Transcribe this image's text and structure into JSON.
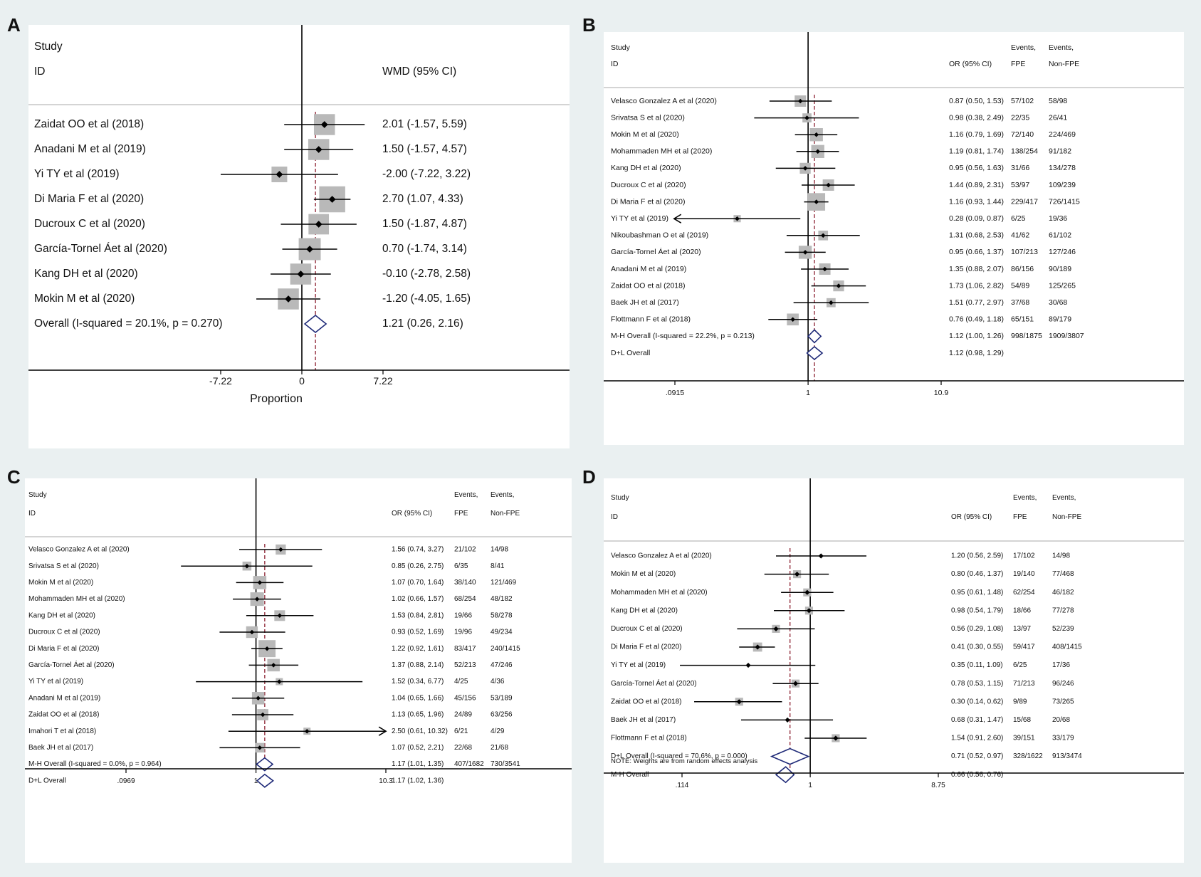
{
  "chart_data": [
    {
      "panel": "A",
      "type": "forest",
      "header": {
        "col1_line1": "Study",
        "col1_line2": "ID",
        "est_label": "WMD (95% CI)"
      },
      "studies": [
        {
          "id": "Zaidat OO et al (2018)",
          "est": 2.01,
          "lo": -1.57,
          "hi": 5.59,
          "label": "2.01 (-1.57, 5.59)",
          "w": 13
        },
        {
          "id": "Anadani M et al (2019)",
          "est": 1.5,
          "lo": -1.57,
          "hi": 4.57,
          "label": "1.50 (-1.57, 4.57)",
          "w": 13
        },
        {
          "id": "Yi TY et al (2019)",
          "est": -2.0,
          "lo": -7.22,
          "hi": 3.22,
          "label": "-2.00 (-7.22, 3.22)",
          "w": 5
        },
        {
          "id": "Di Maria F et al (2020)",
          "est": 2.7,
          "lo": 1.07,
          "hi": 4.33,
          "label": "2.70 (1.07, 4.33)",
          "w": 24
        },
        {
          "id": "Ducroux C et al (2020)",
          "est": 1.5,
          "lo": -1.87,
          "hi": 4.87,
          "label": "1.50 (-1.87, 4.87)",
          "w": 12
        },
        {
          "id": "García-Tornel Áet al  (2020)",
          "est": 0.7,
          "lo": -1.74,
          "hi": 3.14,
          "label": "0.70 (-1.74, 3.14)",
          "w": 15
        },
        {
          "id": "Kang DH et al (2020)",
          "est": -0.1,
          "lo": -2.78,
          "hi": 2.58,
          "label": "-0.10 (-2.78, 2.58)",
          "w": 13
        },
        {
          "id": "Mokin M et al (2020)",
          "est": -1.2,
          "lo": -4.05,
          "hi": 1.65,
          "label": "-1.20 (-4.05, 1.65)",
          "w": 13
        }
      ],
      "overall": [
        {
          "id": "Overall  (I-squared = 20.1%, p = 0.270)",
          "est": 1.21,
          "lo": 0.26,
          "hi": 2.16,
          "label": "1.21 (0.26, 2.16)"
        }
      ],
      "scale": "linear",
      "xlim": [
        -7.22,
        7.22
      ],
      "ticks": [
        {
          "v": -7.22,
          "t": "-7.22"
        },
        {
          "v": 0,
          "t": "0"
        },
        {
          "v": 7.22,
          "t": "7.22"
        }
      ],
      "xlabel": "Proportion",
      "note": ""
    },
    {
      "panel": "B",
      "type": "forest",
      "header": {
        "col1_line1": "Study",
        "col1_line2": "ID",
        "est_label": "OR (95% CI)",
        "ev1_line1": "Events,",
        "ev1_line2": "FPE",
        "ev2_line1": "Events,",
        "ev2_line2": "Non-FPE"
      },
      "studies": [
        {
          "id": "Velasco Gonzalez A et al  (2020)",
          "est": 0.87,
          "lo": 0.5,
          "hi": 1.53,
          "label": "0.87 (0.50, 1.53)",
          "ev1": "57/102",
          "ev2": "58/98",
          "w": 7
        },
        {
          "id": "Srivatsa S et al (2020)",
          "est": 0.98,
          "lo": 0.38,
          "hi": 2.49,
          "label": "0.98 (0.38, 2.49)",
          "ev1": "22/35",
          "ev2": "26/41",
          "w": 3
        },
        {
          "id": "Mokin M et al (2020)",
          "est": 1.16,
          "lo": 0.79,
          "hi": 1.69,
          "label": "1.16 (0.79, 1.69)",
          "ev1": "72/140",
          "ev2": "224/469",
          "w": 11
        },
        {
          "id": "Mohammaden MH et al (2020)",
          "est": 1.19,
          "lo": 0.81,
          "hi": 1.74,
          "label": "1.19 (0.81, 1.74)",
          "ev1": "138/254",
          "ev2": "91/182",
          "w": 11
        },
        {
          "id": "Kang DH et al (2020)",
          "est": 0.95,
          "lo": 0.56,
          "hi": 1.63,
          "label": "0.95 (0.56, 1.63)",
          "ev1": "31/66",
          "ev2": "134/278",
          "w": 6
        },
        {
          "id": "Ducroux C et al (2020)",
          "est": 1.44,
          "lo": 0.89,
          "hi": 2.31,
          "label": "1.44 (0.89, 2.31)",
          "ev1": "53/97",
          "ev2": "109/239",
          "w": 7
        },
        {
          "id": "Di Maria F et al (2020)",
          "est": 1.16,
          "lo": 0.93,
          "hi": 1.44,
          "label": "1.16 (0.93, 1.44)",
          "ev1": "229/417",
          "ev2": "726/1415",
          "w": 26
        },
        {
          "id": "Yi TY et al (2019)",
          "est": 0.28,
          "lo": 0.09,
          "hi": 0.87,
          "label": "0.28 (0.09, 0.87)",
          "ev1": "6/25",
          "ev2": "19/36",
          "w": 1,
          "arrow_lo": true
        },
        {
          "id": "Nikoubashman O et al (2019)",
          "est": 1.31,
          "lo": 0.68,
          "hi": 2.53,
          "label": "1.31 (0.68, 2.53)",
          "ev1": "41/62",
          "ev2": "61/102",
          "w": 4
        },
        {
          "id": "García-Tornel Áet al  (2020)",
          "est": 0.95,
          "lo": 0.66,
          "hi": 1.37,
          "label": "0.95 (0.66, 1.37)",
          "ev1": "107/213",
          "ev2": "127/246",
          "w": 11
        },
        {
          "id": "Anadani M et al (2019)",
          "est": 1.35,
          "lo": 0.88,
          "hi": 2.07,
          "label": "1.35 (0.88, 2.07)",
          "ev1": "86/156",
          "ev2": "90/189",
          "w": 7
        },
        {
          "id": "Zaidat OO et al (2018)",
          "est": 1.73,
          "lo": 1.06,
          "hi": 2.82,
          "label": "1.73 (1.06, 2.82)",
          "ev1": "54/89",
          "ev2": "125/265",
          "w": 6
        },
        {
          "id": "Baek JH et al (2017)",
          "est": 1.51,
          "lo": 0.77,
          "hi": 2.97,
          "label": "1.51 (0.77, 2.97)",
          "ev1": "37/68",
          "ev2": "30/68",
          "w": 3
        },
        {
          "id": "Flottmann F et al (2018)",
          "est": 0.76,
          "lo": 0.49,
          "hi": 1.18,
          "label": "0.76 (0.49, 1.18)",
          "ev1": "65/151",
          "ev2": "89/179",
          "w": 8
        }
      ],
      "overall": [
        {
          "id": "M-H Overall  (I-squared = 22.2%, p = 0.213)",
          "est": 1.12,
          "lo": 1.0,
          "hi": 1.26,
          "label": "1.12 (1.00, 1.26)",
          "ev1": "998/1875",
          "ev2": "1909/3807"
        },
        {
          "id": "D+L Overall",
          "est": 1.12,
          "lo": 0.98,
          "hi": 1.29,
          "label": "1.12 (0.98, 1.29)",
          "ev1": "",
          "ev2": ""
        }
      ],
      "scale": "log",
      "xlim": [
        0.0915,
        10.9
      ],
      "ticks": [
        {
          "v": 0.0915,
          "t": ".0915"
        },
        {
          "v": 1,
          "t": "1"
        },
        {
          "v": 10.9,
          "t": "10.9"
        }
      ],
      "xlabel": "",
      "note": ""
    },
    {
      "panel": "C",
      "type": "forest",
      "header": {
        "col1_line1": "Study",
        "col1_line2": "ID",
        "est_label": "OR (95% CI)",
        "ev1_line1": "Events,",
        "ev1_line2": "FPE",
        "ev2_line1": "Events,",
        "ev2_line2": "Non-FPE"
      },
      "studies": [
        {
          "id": "Velasco Gonzalez A et al  (2020)",
          "est": 1.56,
          "lo": 0.74,
          "hi": 3.27,
          "label": "1.56 (0.74, 3.27)",
          "ev1": "21/102",
          "ev2": "14/98",
          "w": 5
        },
        {
          "id": "Srivatsa S et al (2020)",
          "est": 0.85,
          "lo": 0.26,
          "hi": 2.75,
          "label": "0.85 (0.26, 2.75)",
          "ev1": "6/35",
          "ev2": "8/41",
          "w": 3
        },
        {
          "id": "Mokin M et al (2020)",
          "est": 1.07,
          "lo": 0.7,
          "hi": 1.64,
          "label": "1.07 (0.70, 1.64)",
          "ev1": "38/140",
          "ev2": "121/469",
          "w": 12
        },
        {
          "id": "Mohammaden MH et al (2020)",
          "est": 1.02,
          "lo": 0.66,
          "hi": 1.57,
          "label": "1.02 (0.66, 1.57)",
          "ev1": "68/254",
          "ev2": "48/182",
          "w": 13
        },
        {
          "id": "Kang DH et al (2020)",
          "est": 1.53,
          "lo": 0.84,
          "hi": 2.81,
          "label": "1.53 (0.84, 2.81)",
          "ev1": "19/66",
          "ev2": "58/278",
          "w": 6
        },
        {
          "id": "Ducroux C et al (2020)",
          "est": 0.93,
          "lo": 0.52,
          "hi": 1.69,
          "label": "0.93 (0.52, 1.69)",
          "ev1": "19/96",
          "ev2": "49/234",
          "w": 8
        },
        {
          "id": "Di Maria F et al (2020)",
          "est": 1.22,
          "lo": 0.92,
          "hi": 1.61,
          "label": "1.22 (0.92, 1.61)",
          "ev1": "83/417",
          "ev2": "240/1415",
          "w": 25
        },
        {
          "id": "García-Tornel Áet al (2020)",
          "est": 1.37,
          "lo": 0.88,
          "hi": 2.14,
          "label": "1.37 (0.88, 2.14)",
          "ev1": "52/213",
          "ev2": "47/246",
          "w": 10
        },
        {
          "id": "Yi TY et al (2019)",
          "est": 1.52,
          "lo": 0.34,
          "hi": 6.77,
          "label": "1.52 (0.34, 6.77)",
          "ev1": "4/25",
          "ev2": "4/36",
          "w": 1
        },
        {
          "id": "Anadani M et al (2019)",
          "est": 1.04,
          "lo": 0.65,
          "hi": 1.66,
          "label": "1.04 (0.65, 1.66)",
          "ev1": "45/156",
          "ev2": "53/189",
          "w": 10
        },
        {
          "id": "Zaidat OO et al (2018)",
          "est": 1.13,
          "lo": 0.65,
          "hi": 1.96,
          "label": "1.13 (0.65, 1.96)",
          "ev1": "24/89",
          "ev2": "63/256",
          "w": 7
        },
        {
          "id": "Imahori T et al (2018)",
          "est": 2.5,
          "lo": 0.61,
          "hi": 10.32,
          "label": "2.50 (0.61, 10.32)",
          "ev1": "6/21",
          "ev2": "4/29",
          "w": 1,
          "arrow_hi": true
        },
        {
          "id": "Baek JH et al (2017)",
          "est": 1.07,
          "lo": 0.52,
          "hi": 2.21,
          "label": "1.07 (0.52, 2.21)",
          "ev1": "22/68",
          "ev2": "21/68",
          "w": 4
        }
      ],
      "overall": [
        {
          "id": "M-H Overall  (I-squared = 0.0%, p = 0.964)",
          "est": 1.17,
          "lo": 1.01,
          "hi": 1.35,
          "label": "1.17 (1.01, 1.35)",
          "ev1": "407/1682",
          "ev2": "730/3541"
        },
        {
          "id": "D+L Overall",
          "est": 1.17,
          "lo": 1.02,
          "hi": 1.36,
          "label": "1.17 (1.02, 1.36)",
          "ev1": "",
          "ev2": ""
        }
      ],
      "scale": "log",
      "xlim": [
        0.0969,
        10.3
      ],
      "ticks": [
        {
          "v": 0.0969,
          "t": ".0969"
        },
        {
          "v": 1,
          "t": "1"
        },
        {
          "v": 10.3,
          "t": "10.3"
        }
      ],
      "xlabel": "",
      "note": ""
    },
    {
      "panel": "D",
      "type": "forest",
      "header": {
        "col1_line1": "Study",
        "col1_line2": "ID",
        "est_label": "OR (95% CI)",
        "ev1_line1": "Events,",
        "ev1_line2": "FPE",
        "ev2_line1": "Events,",
        "ev2_line2": "Non-FPE"
      },
      "studies": [
        {
          "id": "Velasco Gonzalez A et al  (2020)",
          "est": 1.2,
          "lo": 0.56,
          "hi": 2.59,
          "label": "1.20 (0.56, 2.59)",
          "ev1": "17/102",
          "ev2": "14/98",
          "w": 0
        },
        {
          "id": "Mokin M et al (2020)",
          "est": 0.8,
          "lo": 0.46,
          "hi": 1.37,
          "label": "0.80 (0.46, 1.37)",
          "ev1": "19/140",
          "ev2": "77/468",
          "w": 1
        },
        {
          "id": "Mohammaden MH et al (2020)",
          "est": 0.95,
          "lo": 0.61,
          "hi": 1.48,
          "label": "0.95 (0.61, 1.48)",
          "ev1": "62/254",
          "ev2": "46/182",
          "w": 1
        },
        {
          "id": "Kang DH et al (2020)",
          "est": 0.98,
          "lo": 0.54,
          "hi": 1.79,
          "label": "0.98 (0.54, 1.79)",
          "ev1": "18/66",
          "ev2": "77/278",
          "w": 1
        },
        {
          "id": "Ducroux C et al (2020)",
          "est": 0.56,
          "lo": 0.29,
          "hi": 1.08,
          "label": "0.56 (0.29, 1.08)",
          "ev1": "13/97",
          "ev2": "52/239",
          "w": 1
        },
        {
          "id": "Di Maria F et al (2020)",
          "est": 0.41,
          "lo": 0.3,
          "hi": 0.55,
          "label": "0.41 (0.30, 0.55)",
          "ev1": "59/417",
          "ev2": "408/1415",
          "w": 2
        },
        {
          "id": "Yi TY et al (2019)",
          "est": 0.35,
          "lo": 0.11,
          "hi": 1.09,
          "label": "0.35 (0.11, 1.09)",
          "ev1": "6/25",
          "ev2": "17/36",
          "w": 0
        },
        {
          "id": "García-Tornel Áet al  (2020)",
          "est": 0.78,
          "lo": 0.53,
          "hi": 1.15,
          "label": "0.78 (0.53, 1.15)",
          "ev1": "71/213",
          "ev2": "96/246",
          "w": 1
        },
        {
          "id": "Zaidat OO et al (2018)",
          "est": 0.3,
          "lo": 0.14,
          "hi": 0.62,
          "label": "0.30 (0.14, 0.62)",
          "ev1": "9/89",
          "ev2": "73/265",
          "w": 1
        },
        {
          "id": "Baek JH et al (2017)",
          "est": 0.68,
          "lo": 0.31,
          "hi": 1.47,
          "label": "0.68 (0.31, 1.47)",
          "ev1": "15/68",
          "ev2": "20/68",
          "w": 0
        },
        {
          "id": "Flottmann F et al (2018)",
          "est": 1.54,
          "lo": 0.91,
          "hi": 2.6,
          "label": "1.54 (0.91, 2.60)",
          "ev1": "39/151",
          "ev2": "33/179",
          "w": 1
        }
      ],
      "overall": [
        {
          "id": "D+L Overall  (I-squared = 70.6%, p = 0.000)",
          "est": 0.71,
          "lo": 0.52,
          "hi": 0.97,
          "label": "0.71 (0.52, 0.97)",
          "ev1": "328/1622",
          "ev2": "913/3474"
        },
        {
          "id": "M-H Overall",
          "est": 0.66,
          "lo": 0.56,
          "hi": 0.76,
          "label": "0.66 (0.56, 0.76)",
          "ev1": "",
          "ev2": ""
        }
      ],
      "scale": "log",
      "xlim": [
        0.114,
        8.75
      ],
      "ticks": [
        {
          "v": 0.114,
          "t": ".114"
        },
        {
          "v": 1,
          "t": "1"
        },
        {
          "v": 8.75,
          "t": "8.75"
        }
      ],
      "xlabel": "",
      "note": "NOTE: Weights are from random effects analysis"
    }
  ]
}
